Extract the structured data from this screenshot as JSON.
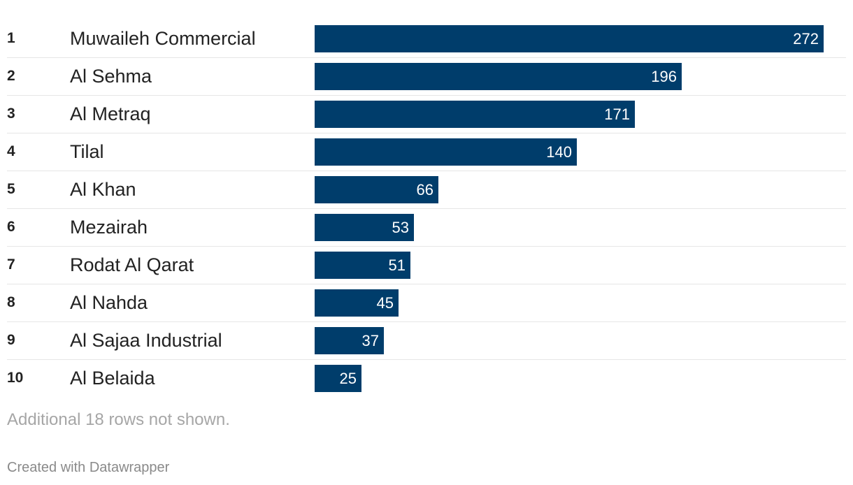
{
  "chart_data": {
    "type": "bar",
    "orientation": "horizontal",
    "ranks": [
      "1",
      "2",
      "3",
      "4",
      "5",
      "6",
      "7",
      "8",
      "9",
      "10"
    ],
    "categories": [
      "Muwaileh Commercial",
      "Al Sehma",
      "Al Metraq",
      "Tilal",
      "Al Khan",
      "Mezairah",
      "Rodat Al Qarat",
      "Al Nahda",
      "Al Sajaa Industrial",
      "Al Belaida"
    ],
    "values": [
      272,
      196,
      171,
      140,
      66,
      53,
      51,
      45,
      37,
      25
    ],
    "bar_color": "#003d6b",
    "xlim": [
      0,
      272
    ],
    "grid": false
  },
  "footer": {
    "note": "Additional 18 rows not shown.",
    "credit": "Created with Datawrapper"
  }
}
